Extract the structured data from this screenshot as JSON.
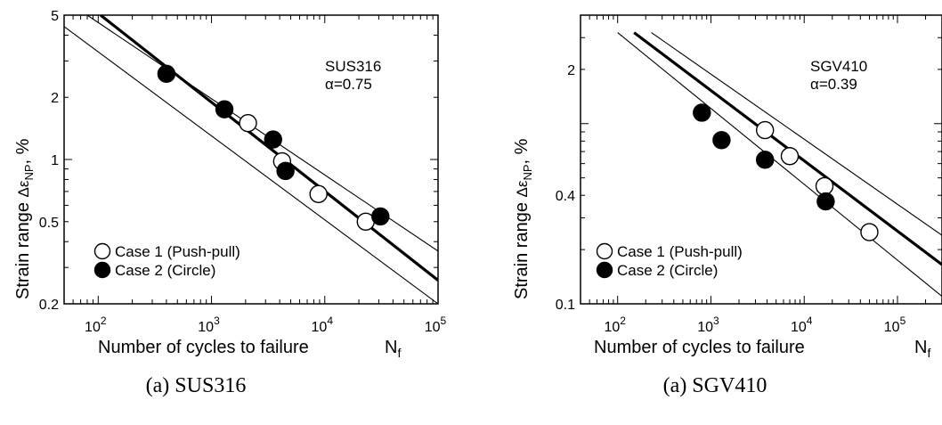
{
  "chart_data": [
    {
      "type": "scatter",
      "x_scale": "log",
      "y_scale": "log",
      "xlim": [
        50,
        100000
      ],
      "ylim": [
        0.2,
        5
      ],
      "x_ticks": [
        {
          "v": 100,
          "m": "10",
          "e": "2"
        },
        {
          "v": 1000,
          "m": "10",
          "e": "3"
        },
        {
          "v": 10000,
          "m": "10",
          "e": "4"
        },
        {
          "v": 100000,
          "m": "10",
          "e": "5"
        }
      ],
      "y_ticks": [
        {
          "v": 0.2,
          "label": "0.2"
        },
        {
          "v": 0.5,
          "label": "0.5"
        },
        {
          "v": 1,
          "label": "1"
        },
        {
          "v": 2,
          "label": "2"
        },
        {
          "v": 5,
          "label": "5"
        }
      ],
      "xlabel": "Number of cycles to failure",
      "xlabel_symbol": "N",
      "xlabel_sub": "f",
      "ylabel": "Strain range",
      "ylabel_symbol": "Δε",
      "ylabel_sub": "NP",
      "ylabel_unit": ",    %",
      "annotation": [
        "SUS316",
        "α=0.75"
      ],
      "caption": "(a) SUS316",
      "legend_position": "bottom-left",
      "series": [
        {
          "name": "Case 1 (Push-pull)",
          "marker": "open-circle",
          "x": [
            2100,
            4200,
            8800,
            23000
          ],
          "y": [
            1.5,
            0.98,
            0.68,
            0.5
          ]
        },
        {
          "name": "Case 2 (Circle)",
          "marker": "filled-circle",
          "x": [
            400,
            1300,
            3500,
            4500,
            31000
          ],
          "y": [
            2.6,
            1.75,
            1.25,
            0.88,
            0.53
          ]
        }
      ],
      "lines": [
        {
          "style": "bold",
          "x": [
            105,
            100000
          ],
          "y": [
            5,
            0.26
          ]
        },
        {
          "style": "thin",
          "x": [
            80,
            100000
          ],
          "y": [
            5,
            0.36
          ]
        },
        {
          "style": "thin",
          "x": [
            50,
            100000
          ],
          "y": [
            4.4,
            0.2
          ]
        }
      ]
    },
    {
      "type": "scatter",
      "x_scale": "log",
      "y_scale": "log",
      "xlim": [
        40,
        300000
      ],
      "ylim": [
        0.1,
        4
      ],
      "x_ticks": [
        {
          "v": 100,
          "m": "10",
          "e": "2"
        },
        {
          "v": 1000,
          "m": "10",
          "e": "3"
        },
        {
          "v": 10000,
          "m": "10",
          "e": "4"
        },
        {
          "v": 100000,
          "m": "10",
          "e": "5"
        }
      ],
      "y_ticks": [
        {
          "v": 0.1,
          "label": "0.1"
        },
        {
          "v": 0.4,
          "label": "0.4"
        },
        {
          "v": 2,
          "label": "2"
        }
      ],
      "xlabel": "Number of cycles to failure",
      "xlabel_symbol": "N",
      "xlabel_sub": "f",
      "ylabel": "Strain range",
      "ylabel_symbol": "Δε",
      "ylabel_sub": "NP",
      "ylabel_unit": ",    %",
      "annotation": [
        "SGV410",
        "α=0.39"
      ],
      "caption": "(a) SGV410",
      "legend_position": "bottom-left",
      "series": [
        {
          "name": "Case 1 (Push-pull)",
          "marker": "open-circle",
          "x": [
            3800,
            7000,
            16500,
            50000
          ],
          "y": [
            0.92,
            0.66,
            0.45,
            0.25
          ]
        },
        {
          "name": "Case 2 (Circle)",
          "marker": "filled-circle",
          "x": [
            800,
            1300,
            3800,
            17000
          ],
          "y": [
            1.15,
            0.81,
            0.63,
            0.37
          ]
        }
      ],
      "lines": [
        {
          "style": "bold",
          "x": [
            150,
            300000
          ],
          "y": [
            3.2,
            0.165
          ]
        },
        {
          "style": "thin",
          "x": [
            100,
            300000
          ],
          "y": [
            3.2,
            0.11
          ]
        },
        {
          "style": "thin",
          "x": [
            230,
            300000
          ],
          "y": [
            3.2,
            0.24
          ]
        }
      ]
    }
  ]
}
